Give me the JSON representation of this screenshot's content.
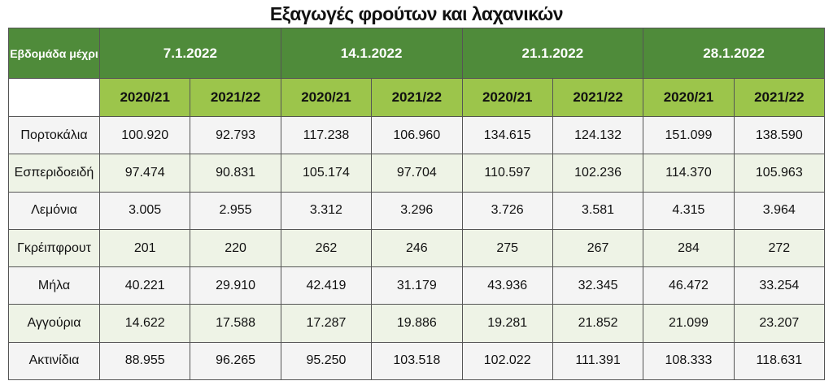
{
  "title": "Εξαγωγές φρούτων και λαχανικών",
  "table": {
    "corner_label": "Εβδομάδα μέχρι",
    "dates": [
      "7.1.2022",
      "14.1.2022",
      "21.1.2022",
      "28.1.2022"
    ],
    "seasons": [
      "2020/21",
      "2021/22",
      "2020/21",
      "2021/22",
      "2020/21",
      "2021/22",
      "2020/21",
      "2021/22"
    ],
    "rows": [
      {
        "label": "Πορτοκάλια",
        "values": [
          "100.920",
          "92.793",
          "117.238",
          "106.960",
          "134.615",
          "124.132",
          "151.099",
          "138.590"
        ]
      },
      {
        "label": "Εσπεριδοειδή",
        "values": [
          "97.474",
          "90.831",
          "105.174",
          "97.704",
          "110.597",
          "102.236",
          "114.370",
          "105.963"
        ]
      },
      {
        "label": "Λεμόνια",
        "values": [
          "3.005",
          "2.955",
          "3.312",
          "3.296",
          "3.726",
          "3.581",
          "4.315",
          "3.964"
        ]
      },
      {
        "label": "Γκρέιπφρουτ",
        "values": [
          "201",
          "220",
          "262",
          "246",
          "275",
          "267",
          "284",
          "272"
        ]
      },
      {
        "label": "Μήλα",
        "values": [
          "40.221",
          "29.910",
          "42.419",
          "31.179",
          "43.936",
          "32.345",
          "46.472",
          "33.254"
        ]
      },
      {
        "label": "Αγγούρια",
        "values": [
          "14.622",
          "17.588",
          "17.287",
          "19.886",
          "19.281",
          "21.852",
          "21.099",
          "23.207"
        ]
      },
      {
        "label": "Ακτινίδια",
        "values": [
          "88.955",
          "96.265",
          "95.250",
          "103.518",
          "102.022",
          "111.391",
          "108.333",
          "118.631"
        ]
      }
    ]
  }
}
